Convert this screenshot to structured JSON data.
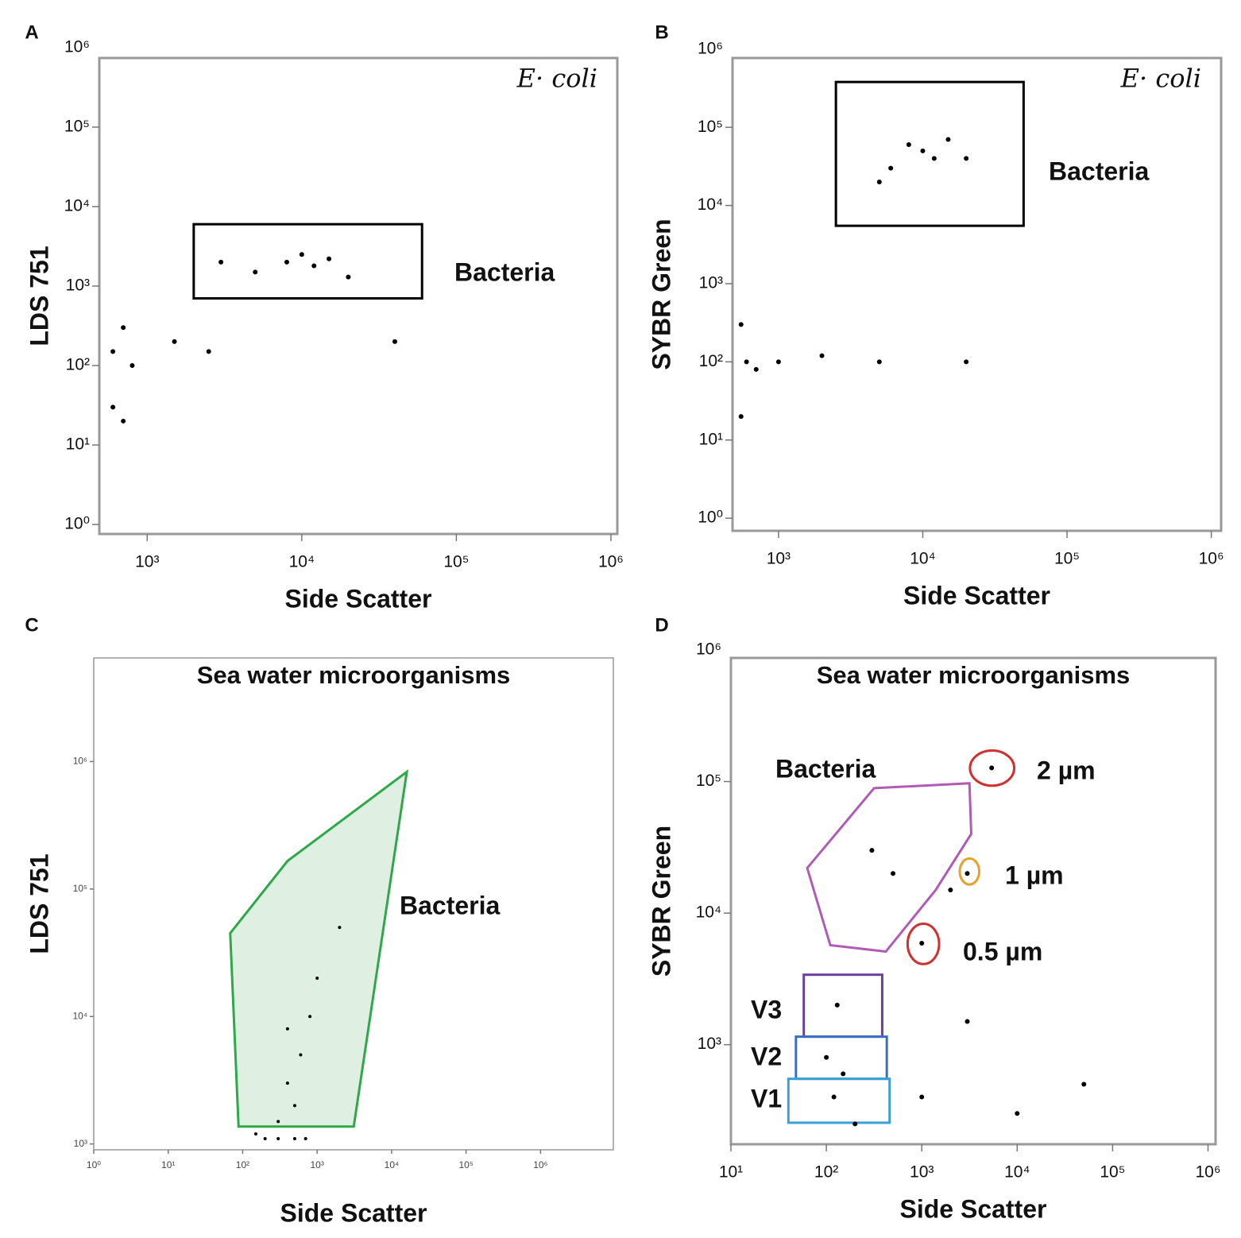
{
  "chart_data": [
    {
      "panel": "A",
      "type": "scatter",
      "annotation": "E· coli",
      "xlabel": "Side Scatter",
      "ylabel": "LDS 751",
      "xscale": "log",
      "yscale": "log",
      "xlim": [
        490,
        1100000
      ],
      "ylim": [
        0.76,
        740000
      ],
      "xticks": [
        {
          "value": 1000,
          "label": "10³"
        },
        {
          "value": 10000,
          "label": "10⁴"
        },
        {
          "value": 100000,
          "label": "10⁵"
        },
        {
          "value": 1000000,
          "label": "10⁶"
        }
      ],
      "yticks": [
        {
          "value": 1,
          "label": "10⁰"
        },
        {
          "value": 10,
          "label": "10¹"
        },
        {
          "value": 100,
          "label": "10²"
        },
        {
          "value": 1000,
          "label": "10³"
        },
        {
          "value": 10000,
          "label": "10⁴"
        },
        {
          "value": 100000,
          "label": "10⁵"
        },
        {
          "value": 1000000,
          "label": "10⁶"
        }
      ],
      "color": "#000000",
      "x": [
        8000,
        10000,
        12000,
        5000,
        15000,
        3000,
        20000,
        700,
        600,
        800,
        1500,
        2500,
        40000,
        600,
        700
      ],
      "y": [
        2000,
        2500,
        1800,
        1500,
        2200,
        2000,
        1300,
        300,
        150,
        100,
        200,
        150,
        200,
        30,
        20
      ],
      "gates": [
        {
          "label": "Bacteria",
          "shape": "rect",
          "color": "#000000",
          "x": [
            2000,
            60000
          ],
          "y": [
            700,
            6000
          ]
        }
      ]
    },
    {
      "panel": "B",
      "type": "scatter",
      "annotation": "E· coli",
      "xlabel": "Side Scatter",
      "ylabel": "SYBR Green",
      "xscale": "log",
      "yscale": "log",
      "xlim": [
        480,
        1170000
      ],
      "ylim": [
        0.69,
        770000
      ],
      "xticks": [
        {
          "value": 1000,
          "label": "10³"
        },
        {
          "value": 10000,
          "label": "10⁴"
        },
        {
          "value": 100000,
          "label": "10⁵"
        },
        {
          "value": 1000000,
          "label": "10⁶"
        }
      ],
      "yticks": [
        {
          "value": 1,
          "label": "10⁰"
        },
        {
          "value": 10,
          "label": "10¹"
        },
        {
          "value": 100,
          "label": "10²"
        },
        {
          "value": 1000,
          "label": "10³"
        },
        {
          "value": 10000,
          "label": "10⁴"
        },
        {
          "value": 100000,
          "label": "10⁵"
        },
        {
          "value": 1000000,
          "label": "10⁶"
        }
      ],
      "color": "#000000",
      "x": [
        10000,
        8000,
        12000,
        6000,
        15000,
        20000,
        5000,
        600,
        550,
        700,
        1000,
        2000,
        5000,
        20000,
        550
      ],
      "y": [
        50000,
        60000,
        40000,
        30000,
        70000,
        40000,
        20000,
        100,
        300,
        80,
        100,
        120,
        100,
        100,
        20
      ],
      "gates": [
        {
          "label": "Bacteria",
          "shape": "rect",
          "color": "#000000",
          "x": [
            2500,
            50000
          ],
          "y": [
            5500,
            380000
          ]
        }
      ]
    },
    {
      "panel": "C",
      "type": "scatter",
      "title": "Sea water microorganisms",
      "xlabel": "Side Scatter",
      "ylabel": "LDS 751",
      "xscale": "log",
      "yscale": "log",
      "xlim": [
        1,
        9500000
      ],
      "ylim": [
        900,
        6500000
      ],
      "xticks": [
        {
          "value": 1,
          "label": "10⁰"
        },
        {
          "value": 10,
          "label": "10¹"
        },
        {
          "value": 100,
          "label": "10²"
        },
        {
          "value": 1000,
          "label": "10³"
        },
        {
          "value": 10000,
          "label": "10⁴"
        },
        {
          "value": 100000,
          "label": "10⁵"
        },
        {
          "value": 1000000,
          "label": "10⁶"
        }
      ],
      "yticks": [
        {
          "value": 1000,
          "label": "10³"
        },
        {
          "value": 10000,
          "label": "10⁴"
        },
        {
          "value": 100000,
          "label": "10⁵"
        },
        {
          "value": 1000000,
          "label": "10⁶"
        }
      ],
      "color": "#000000",
      "x": [
        300,
        500,
        400,
        600,
        800,
        1000,
        2000,
        300,
        500,
        700,
        150,
        200,
        400
      ],
      "y": [
        1500,
        2000,
        3000,
        5000,
        10000,
        20000,
        50000,
        1100,
        1100,
        1100,
        1200,
        1100,
        8000
      ],
      "gates": [
        {
          "label": "Bacteria",
          "shape": "polygon",
          "color": "#2ea84a",
          "fill": "#dff0e2",
          "x": [
            68,
            400,
            16000,
            3100,
            88
          ],
          "y": [
            45000,
            166000,
            830000,
            1370,
            1370
          ]
        }
      ]
    },
    {
      "panel": "D",
      "type": "scatter",
      "title": "Sea water microorganisms",
      "xlabel": "Side Scatter",
      "ylabel": "SYBR Green",
      "xscale": "log",
      "yscale": "log",
      "xlim": [
        10,
        1200000
      ],
      "ylim": [
        175,
        870000
      ],
      "xticks": [
        {
          "value": 10,
          "label": "10¹"
        },
        {
          "value": 100,
          "label": "10²"
        },
        {
          "value": 1000,
          "label": "10³"
        },
        {
          "value": 10000,
          "label": "10⁴"
        },
        {
          "value": 100000,
          "label": "10⁵"
        },
        {
          "value": 1000000,
          "label": "10⁶"
        }
      ],
      "yticks": [
        {
          "value": 1000,
          "label": "10³"
        },
        {
          "value": 10000,
          "label": "10⁴"
        },
        {
          "value": 100000,
          "label": "10⁵"
        },
        {
          "value": 1000000,
          "label": "10⁶"
        }
      ],
      "color": "#000000",
      "x": [
        120,
        150,
        100,
        130,
        2000,
        1000,
        5400,
        3000,
        500,
        300,
        1000,
        10000,
        3000,
        50000,
        200
      ],
      "y": [
        400,
        600,
        800,
        2000,
        15000,
        5900,
        127000,
        20000,
        20000,
        30000,
        400,
        300,
        1500,
        500,
        250
      ],
      "gates": [
        {
          "label": "Bacteria",
          "shape": "polygon",
          "color": "#b05cb5",
          "x": [
            316,
            3160,
            3300,
            1400,
            420,
            110,
            63
          ],
          "y": [
            89000,
            97000,
            40000,
            15000,
            5100,
            5700,
            22000
          ]
        },
        {
          "label": "2 µm",
          "shape": "ellipse",
          "color": "#d03030",
          "x": [
            3200,
            9300
          ],
          "y": [
            93000,
            172000
          ]
        },
        {
          "label": "1 µm",
          "shape": "ellipse",
          "color": "#e8a030",
          "x": [
            2500,
            4000
          ],
          "y": [
            16500,
            26000
          ]
        },
        {
          "label": "0.5 µm",
          "shape": "ellipse",
          "color": "#d03030",
          "x": [
            710,
            1520
          ],
          "y": [
            4100,
            8300
          ]
        },
        {
          "label": "V3",
          "shape": "rect",
          "color": "#6a3fa0",
          "x": [
            58,
            385
          ],
          "y": [
            1150,
            3400
          ]
        },
        {
          "label": "V2",
          "shape": "rect",
          "color": "#3a6fc0",
          "x": [
            48,
            430
          ],
          "y": [
            550,
            1150
          ]
        },
        {
          "label": "V1",
          "shape": "rect",
          "color": "#3aa0d8",
          "x": [
            40,
            460
          ],
          "y": [
            255,
            550
          ]
        }
      ]
    }
  ]
}
